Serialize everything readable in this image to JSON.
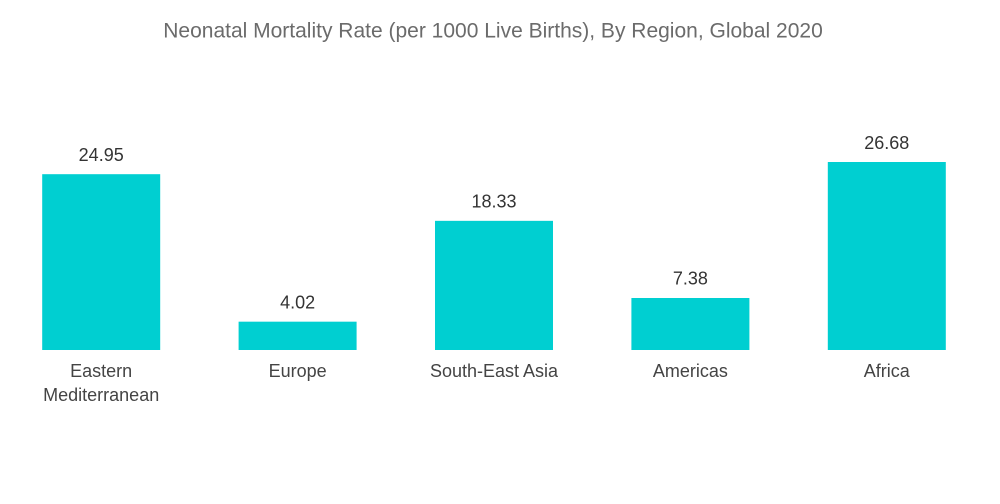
{
  "chart_data": {
    "type": "bar",
    "title": "Neonatal Mortality Rate (per 1000 Live Births), By Region, Global 2020",
    "categories": [
      "Eastern Mediterranean",
      "Europe",
      "South-East Asia",
      "Americas",
      "Africa"
    ],
    "values": [
      24.95,
      4.02,
      18.33,
      7.38,
      26.68
    ],
    "color": "#00cfd1"
  }
}
